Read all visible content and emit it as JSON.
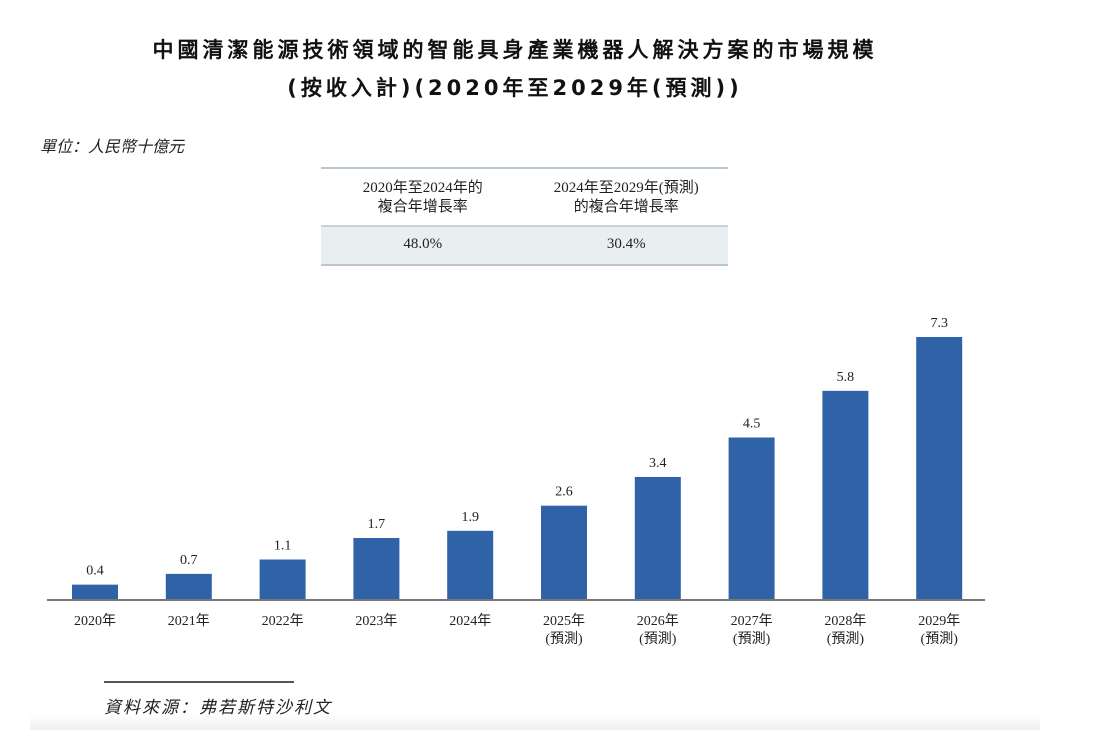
{
  "chart_data": {
    "type": "bar",
    "title": "中國清潔能源技術領域的智能具身產業機器人解決方案的市場規模",
    "subtitle": "(按收入計)(2020年至2029年(預測))",
    "unit": "單位：人民幣十億元",
    "categories": [
      "2020年",
      "2021年",
      "2022年",
      "2023年",
      "2024年",
      "2025年",
      "2026年",
      "2027年",
      "2028年",
      "2029年"
    ],
    "category_sublabels": [
      "",
      "",
      "",
      "",
      "",
      "(預測)",
      "(預測)",
      "(預測)",
      "(預測)",
      "(預測)"
    ],
    "values": [
      0.4,
      0.7,
      1.1,
      1.7,
      1.9,
      2.6,
      3.4,
      4.5,
      5.8,
      7.3
    ],
    "data_labels": [
      "0.4",
      "0.7",
      "1.1",
      "1.7",
      "1.9",
      "2.6",
      "3.4",
      "4.5",
      "5.8",
      "7.3"
    ],
    "ylim": [
      0,
      7.3
    ],
    "grid": false,
    "bar_color": "#2f62a6",
    "cagr_table": {
      "headers": [
        [
          "2020年至2024年的",
          "複合年增長率"
        ],
        [
          "2024年至2029年(預測)",
          "的複合年增長率"
        ]
      ],
      "values": [
        "48.0%",
        "30.4%"
      ]
    },
    "source": "資料來源：弗若斯特沙利文"
  }
}
